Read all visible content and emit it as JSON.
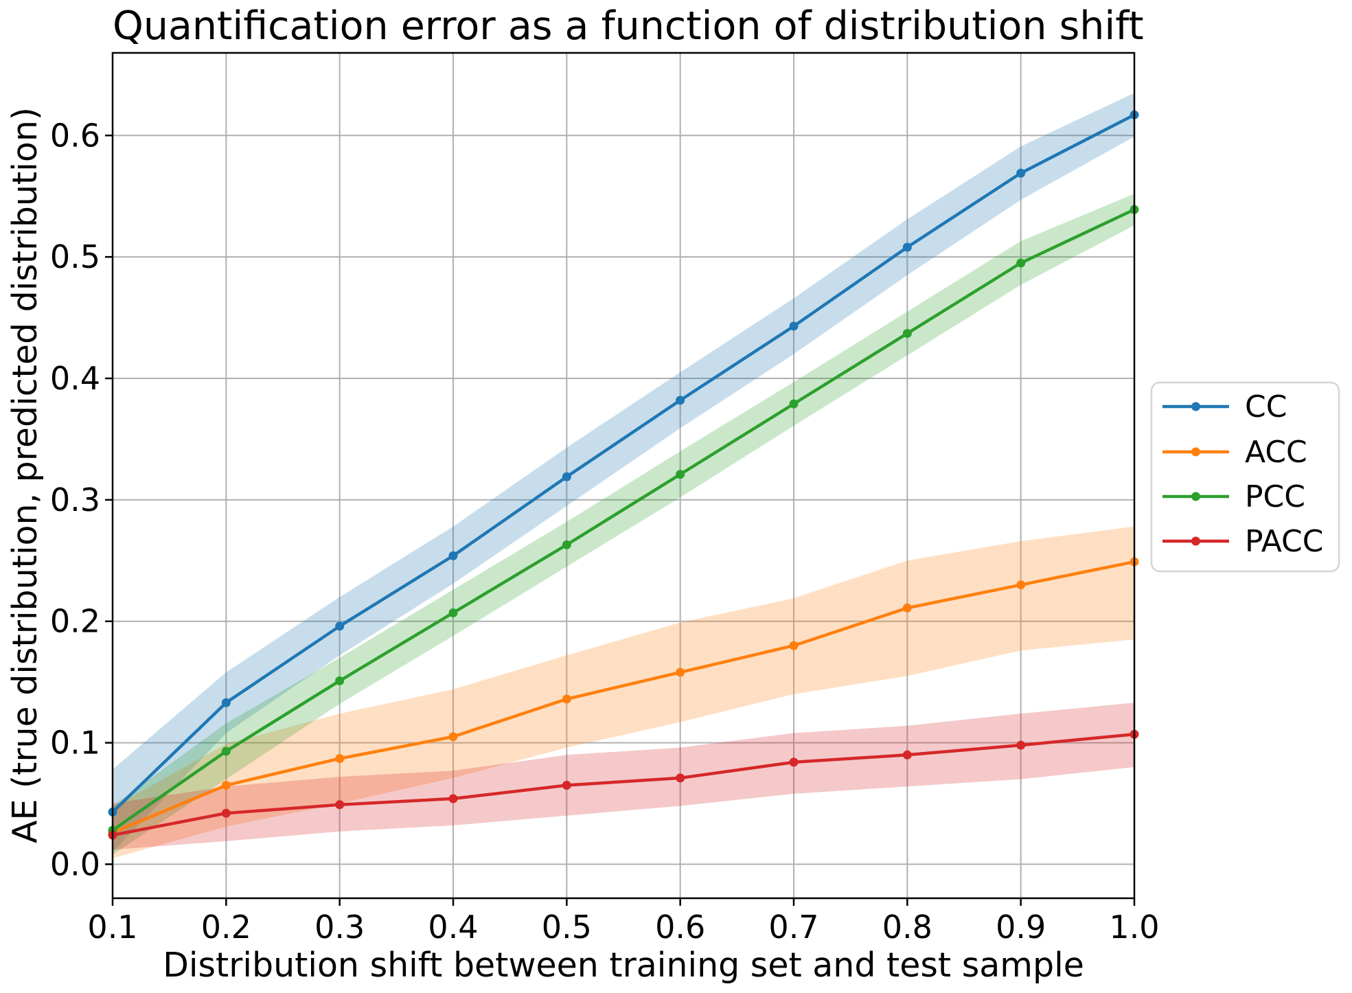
{
  "chart_data": {
    "type": "line",
    "title": "Quantification error as a function of distribution shift",
    "xlabel": "Distribution shift between training set and test sample",
    "ylabel": "AE (true distribution, predicted distribution)",
    "grid": true,
    "grid_color": "#b0b0b0",
    "background_color": "#ffffff",
    "spine_color": "#000000",
    "legend_position": "right-outside",
    "legend_border_color": "#d4d4d4",
    "band_opacity": 0.25,
    "xlim": [
      0.1,
      1.0
    ],
    "ylim": [
      -0.028,
      0.668
    ],
    "x": [
      0.1,
      0.2,
      0.3,
      0.4,
      0.5,
      0.6,
      0.7,
      0.8,
      0.9,
      1.0
    ],
    "x_tick_labels": [
      "0.1",
      "0.2",
      "0.3",
      "0.4",
      "0.5",
      "0.6",
      "0.7",
      "0.8",
      "0.9",
      "1.0"
    ],
    "y_tick_values": [
      0.0,
      0.1,
      0.2,
      0.3,
      0.4,
      0.5,
      0.6
    ],
    "y_tick_labels": [
      "0.0",
      "0.1",
      "0.2",
      "0.3",
      "0.4",
      "0.5",
      "0.6"
    ],
    "series": [
      {
        "name": "CC",
        "color": "#1f77b4",
        "values": [
          0.043,
          0.133,
          0.196,
          0.254,
          0.319,
          0.382,
          0.443,
          0.508,
          0.569,
          0.617
        ],
        "band_low": [
          0.01,
          0.108,
          0.172,
          0.231,
          0.295,
          0.359,
          0.42,
          0.485,
          0.547,
          0.599
        ],
        "band_high": [
          0.078,
          0.158,
          0.22,
          0.278,
          0.343,
          0.405,
          0.466,
          0.531,
          0.591,
          0.635
        ]
      },
      {
        "name": "ACC",
        "color": "#ff7f0e",
        "values": [
          0.026,
          0.065,
          0.087,
          0.105,
          0.136,
          0.158,
          0.18,
          0.211,
          0.23,
          0.249
        ],
        "band_low": [
          0.005,
          0.031,
          0.05,
          0.071,
          0.096,
          0.117,
          0.14,
          0.155,
          0.176,
          0.185
        ],
        "band_high": [
          0.047,
          0.099,
          0.124,
          0.144,
          0.172,
          0.199,
          0.219,
          0.25,
          0.266,
          0.278
        ]
      },
      {
        "name": "PCC",
        "color": "#2ca02c",
        "values": [
          0.028,
          0.093,
          0.151,
          0.207,
          0.263,
          0.321,
          0.379,
          0.437,
          0.495,
          0.539
        ],
        "band_low": [
          0.008,
          0.07,
          0.132,
          0.188,
          0.245,
          0.302,
          0.361,
          0.419,
          0.477,
          0.526
        ],
        "band_high": [
          0.048,
          0.116,
          0.17,
          0.226,
          0.282,
          0.34,
          0.397,
          0.455,
          0.513,
          0.552
        ]
      },
      {
        "name": "PACC",
        "color": "#d62728",
        "values": [
          0.024,
          0.042,
          0.049,
          0.054,
          0.065,
          0.071,
          0.084,
          0.09,
          0.098,
          0.107
        ],
        "band_low": [
          0.012,
          0.019,
          0.027,
          0.032,
          0.04,
          0.048,
          0.058,
          0.064,
          0.07,
          0.08
        ],
        "band_high": [
          0.05,
          0.064,
          0.072,
          0.077,
          0.09,
          0.096,
          0.108,
          0.114,
          0.124,
          0.133
        ]
      }
    ]
  }
}
